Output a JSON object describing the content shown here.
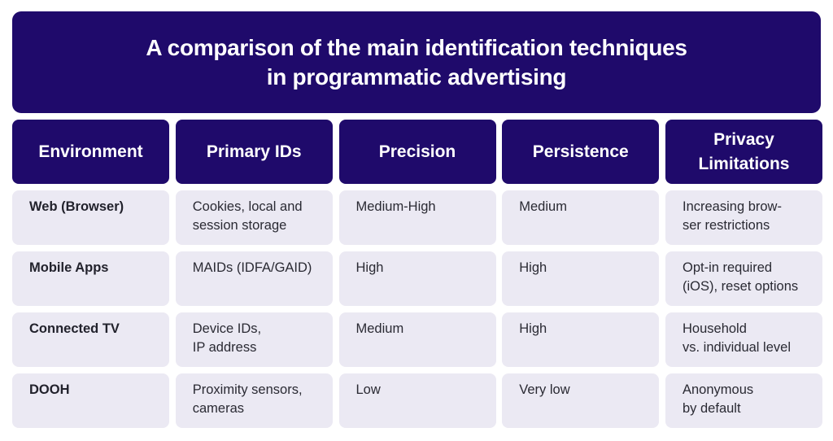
{
  "title": {
    "line1": "A comparison of the main identification techniques",
    "line2": "in programmatic advertising"
  },
  "colors": {
    "navy": "#1f0a6b",
    "cell_bg": "#ebe9f3",
    "text": "#2a2a33",
    "header_text": "#ffffff"
  },
  "table": {
    "headers": [
      {
        "line1": "Environment",
        "line2": ""
      },
      {
        "line1": "Primary IDs",
        "line2": ""
      },
      {
        "line1": "Precision",
        "line2": ""
      },
      {
        "line1": "Persistence",
        "line2": ""
      },
      {
        "line1": "Privacy",
        "line2": "Limitations"
      }
    ],
    "rows": [
      {
        "environment": "Web (Browser)",
        "primary_ids": {
          "line1": "Cookies, local and",
          "line2": "session storage"
        },
        "precision": "Medium-High",
        "persistence": "Medium",
        "privacy": {
          "line1": "Increasing brow-",
          "line2": "ser restrictions"
        }
      },
      {
        "environment": "Mobile Apps",
        "primary_ids": {
          "line1": "MAIDs (IDFA/GAID)",
          "line2": ""
        },
        "precision": "High",
        "persistence": "High",
        "privacy": {
          "line1": "Opt-in required",
          "line2": "(iOS), reset options"
        }
      },
      {
        "environment": "Connected TV",
        "primary_ids": {
          "line1": "Device IDs,",
          "line2": "IP address"
        },
        "precision": "Medium",
        "persistence": "High",
        "privacy": {
          "line1": "Household",
          "line2": "vs. individual level"
        }
      },
      {
        "environment": "DOOH",
        "primary_ids": {
          "line1": "Proximity sensors,",
          "line2": "cameras"
        },
        "precision": "Low",
        "persistence": "Very low",
        "privacy": {
          "line1": "Anonymous",
          "line2": "by default"
        }
      }
    ]
  }
}
